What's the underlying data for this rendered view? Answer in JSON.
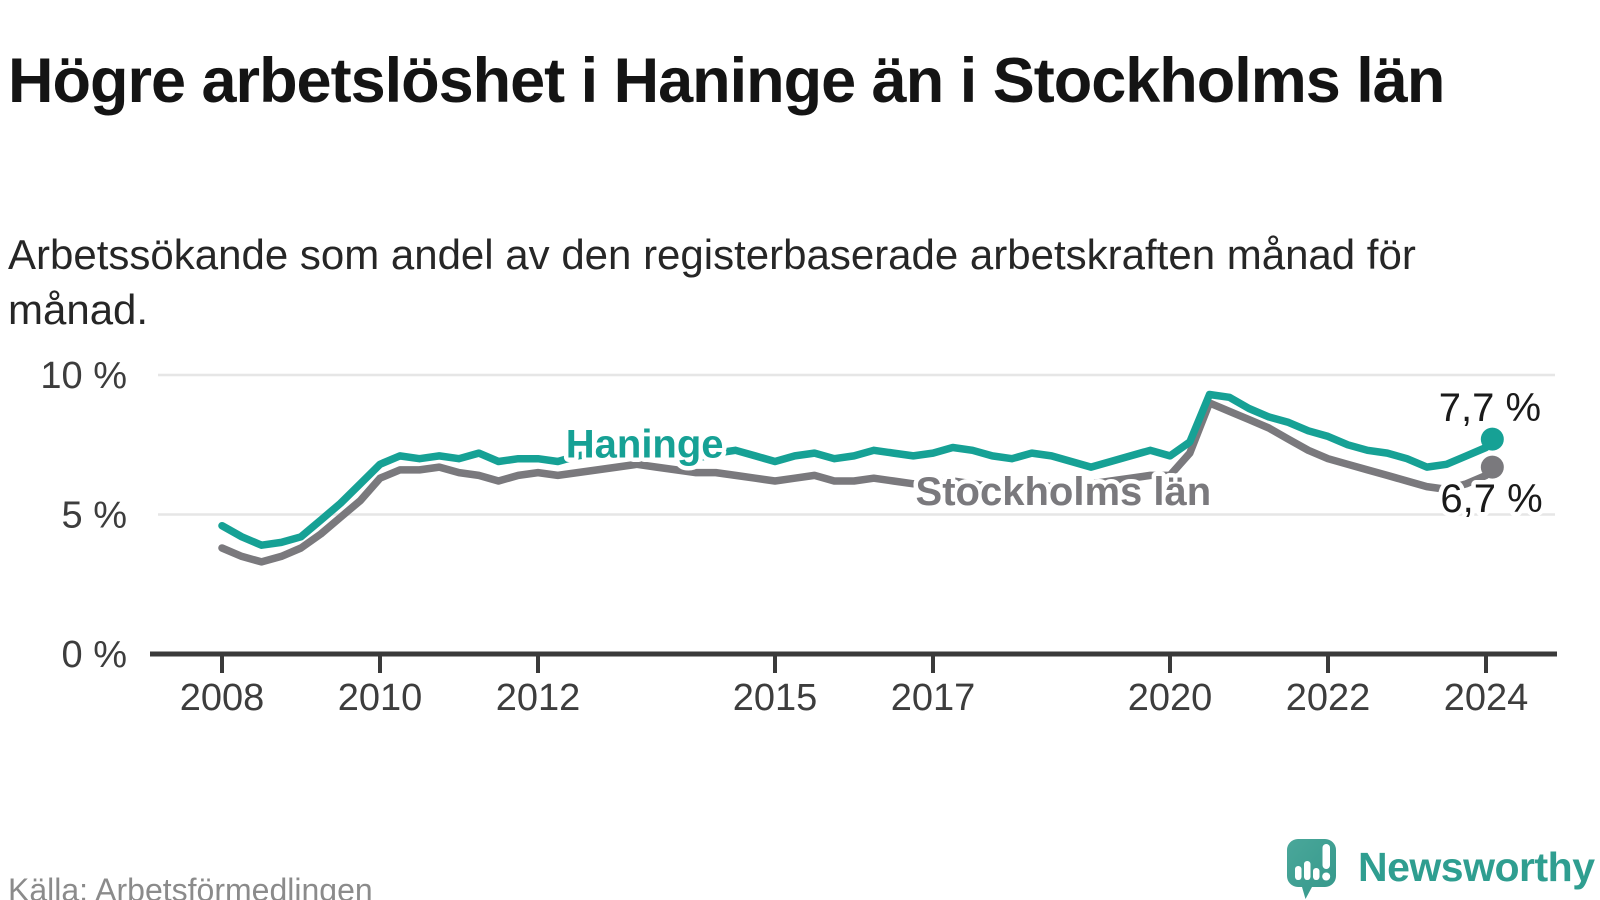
{
  "header": {
    "title": "Högre arbetslöshet i Haninge än i Stockholms län",
    "subtitle": "Arbetssökande som andel av den registerbaserade arbetskraften månad för månad."
  },
  "footer": {
    "source": "Källa: Arbetsförmedlingen",
    "brand": "Newsworthy"
  },
  "colors": {
    "haninge": "#16a195",
    "stockholm": "#7a797d",
    "grid": "#e6e6e6",
    "axis": "#3a3a3a",
    "tick_label": "#3d3d3d",
    "annotation_dark": "#1a1a1a",
    "brand": "#2f9e90"
  },
  "chart_data": {
    "type": "line",
    "unit": "%",
    "ylim": [
      0,
      10.5
    ],
    "xlim": [
      2007.9,
      2024.4
    ],
    "grid": "horizontal",
    "legend_position": "inline-labels",
    "y_ticks": [
      {
        "value": 0,
        "label": "0 %"
      },
      {
        "value": 5,
        "label": "5 %"
      },
      {
        "value": 10,
        "label": "10 %"
      }
    ],
    "x_ticks": [
      {
        "value": 2008,
        "label": "2008"
      },
      {
        "value": 2010,
        "label": "2010"
      },
      {
        "value": 2012,
        "label": "2012"
      },
      {
        "value": 2015,
        "label": "2015"
      },
      {
        "value": 2017,
        "label": "2017"
      },
      {
        "value": 2020,
        "label": "2020"
      },
      {
        "value": 2022,
        "label": "2022"
      },
      {
        "value": 2024,
        "label": "2024"
      }
    ],
    "x": [
      2008.0,
      2008.25,
      2008.5,
      2008.75,
      2009.0,
      2009.25,
      2009.5,
      2009.75,
      2010.0,
      2010.25,
      2010.5,
      2010.75,
      2011.0,
      2011.25,
      2011.5,
      2011.75,
      2012.0,
      2012.25,
      2012.5,
      2012.75,
      2013.0,
      2013.25,
      2013.5,
      2013.75,
      2014.0,
      2014.25,
      2014.5,
      2014.75,
      2015.0,
      2015.25,
      2015.5,
      2015.75,
      2016.0,
      2016.25,
      2016.5,
      2016.75,
      2017.0,
      2017.25,
      2017.5,
      2017.75,
      2018.0,
      2018.25,
      2018.5,
      2018.75,
      2019.0,
      2019.25,
      2019.5,
      2019.75,
      2020.0,
      2020.25,
      2020.5,
      2020.75,
      2021.0,
      2021.25,
      2021.5,
      2021.75,
      2022.0,
      2022.25,
      2022.5,
      2022.75,
      2023.0,
      2023.25,
      2023.5,
      2023.75,
      2024.0,
      2024.08
    ],
    "series": [
      {
        "name": "Haninge",
        "color_key": "haninge",
        "end_label": "7,7 %",
        "end_value": 7.7,
        "values": [
          4.6,
          4.2,
          3.9,
          4.0,
          4.2,
          4.8,
          5.4,
          6.1,
          6.8,
          7.1,
          7.0,
          7.1,
          7.0,
          7.2,
          6.9,
          7.0,
          7.0,
          6.9,
          7.1,
          7.2,
          7.2,
          7.3,
          7.2,
          7.1,
          7.0,
          7.2,
          7.3,
          7.1,
          6.9,
          7.1,
          7.2,
          7.0,
          7.1,
          7.3,
          7.2,
          7.1,
          7.2,
          7.4,
          7.3,
          7.1,
          7.0,
          7.2,
          7.1,
          6.9,
          6.7,
          6.9,
          7.1,
          7.3,
          7.1,
          7.6,
          9.3,
          9.2,
          8.8,
          8.5,
          8.3,
          8.0,
          7.8,
          7.5,
          7.3,
          7.2,
          7.0,
          6.7,
          6.8,
          7.1,
          7.4,
          7.7
        ]
      },
      {
        "name": "Stockholms län",
        "color_key": "stockholm",
        "end_label": "6,7 %",
        "end_value": 6.7,
        "values": [
          3.8,
          3.5,
          3.3,
          3.5,
          3.8,
          4.3,
          4.9,
          5.5,
          6.3,
          6.6,
          6.6,
          6.7,
          6.5,
          6.4,
          6.2,
          6.4,
          6.5,
          6.4,
          6.5,
          6.6,
          6.7,
          6.8,
          6.7,
          6.6,
          6.5,
          6.5,
          6.4,
          6.3,
          6.2,
          6.3,
          6.4,
          6.2,
          6.2,
          6.3,
          6.2,
          6.1,
          6.1,
          6.2,
          6.1,
          6.0,
          6.0,
          6.1,
          6.0,
          6.0,
          6.1,
          6.2,
          6.3,
          6.4,
          6.4,
          7.2,
          9.0,
          8.7,
          8.4,
          8.1,
          7.7,
          7.3,
          7.0,
          6.8,
          6.6,
          6.4,
          6.2,
          6.0,
          5.9,
          6.1,
          6.4,
          6.7
        ]
      }
    ],
    "annotations": [
      {
        "text": "Haninge",
        "x": 2013.35,
        "y": 7.55,
        "color_key": "haninge",
        "weight": "bold"
      },
      {
        "text": "Stockholms län",
        "x": 2018.65,
        "y": 5.85,
        "color_key": "stockholm",
        "weight": "bold"
      },
      {
        "text": "7,7 %",
        "x": 2024.05,
        "y": 8.85,
        "color_key": "annotation_dark",
        "weight": "normal"
      },
      {
        "text": "6,7 %",
        "x": 2024.07,
        "y": 5.6,
        "color_key": "annotation_dark",
        "weight": "normal"
      }
    ]
  }
}
